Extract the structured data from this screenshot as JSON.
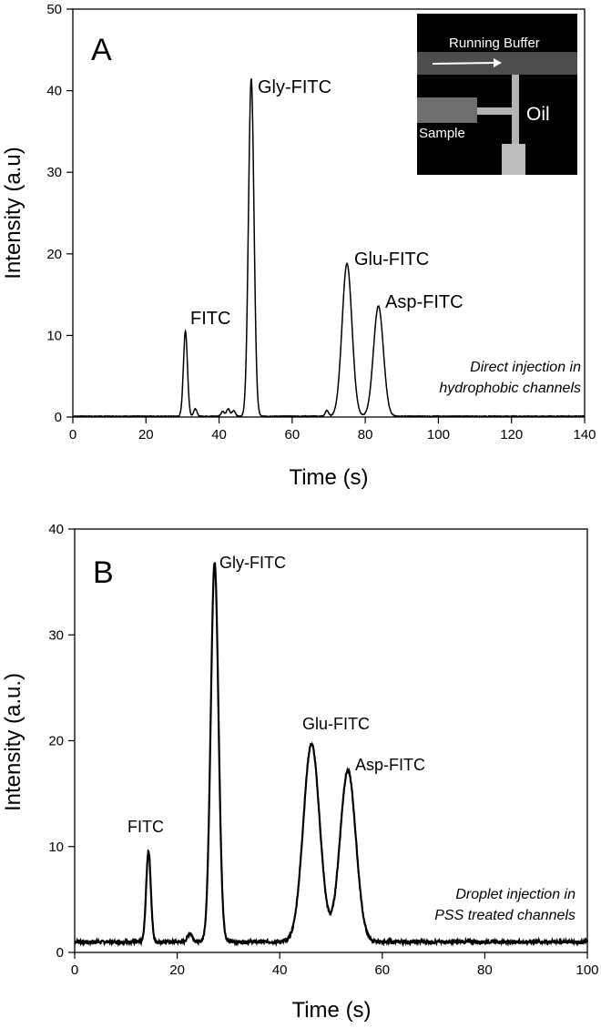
{
  "chart_data": [
    {
      "type": "line",
      "panel_label": "A",
      "xlabel": "Time (s)",
      "ylabel": "Intensity (a.u)",
      "xlim": [
        0,
        140
      ],
      "ylim": [
        0,
        50
      ],
      "xticks": [
        0,
        20,
        40,
        60,
        80,
        100,
        120,
        140
      ],
      "yticks": [
        0,
        10,
        20,
        30,
        40,
        50
      ],
      "baseline": 0.1,
      "peaks": [
        {
          "label": "FITC",
          "x": 30.8,
          "y": 10.5
        },
        {
          "label": "Gly-FITC",
          "x": 48.8,
          "y": 41.5
        },
        {
          "label": "Glu-FITC",
          "x": 75.0,
          "y": 18.8
        },
        {
          "label": "Asp-FITC",
          "x": 83.6,
          "y": 13.6
        }
      ],
      "minor_peaks": [
        {
          "x": 33.5,
          "y": 1.0
        },
        {
          "x": 41.0,
          "y": 0.7
        },
        {
          "x": 42.5,
          "y": 1.0
        },
        {
          "x": 44.0,
          "y": 0.8
        },
        {
          "x": 69.5,
          "y": 0.8
        }
      ],
      "annotation_lines": [
        "Direct injection in",
        "hydrophobic channels"
      ],
      "inset": {
        "running_buffer": "Running Buffer",
        "sample": "Sample",
        "oil": "Oil"
      }
    },
    {
      "type": "line",
      "panel_label": "B",
      "xlabel": "Time (s)",
      "ylabel": "Intensity (a.u.)",
      "xlim": [
        0,
        100
      ],
      "ylim": [
        0,
        40
      ],
      "xticks": [
        0,
        20,
        40,
        60,
        80,
        100
      ],
      "yticks": [
        0,
        10,
        20,
        30,
        40
      ],
      "baseline": 1.0,
      "peaks": [
        {
          "label": "FITC",
          "x": 14.4,
          "y": 9.6
        },
        {
          "label": "Gly-FITC",
          "x": 27.3,
          "y": 36.8
        },
        {
          "label": "Glu-FITC",
          "x": 46.2,
          "y": 19.7
        },
        {
          "label": "Asp-FITC",
          "x": 53.3,
          "y": 17.2
        }
      ],
      "minor_peaks": [
        {
          "x": 22.5,
          "y": 1.8
        }
      ],
      "annotation_lines": [
        "Droplet injection in",
        "PSS treated channels"
      ]
    }
  ]
}
